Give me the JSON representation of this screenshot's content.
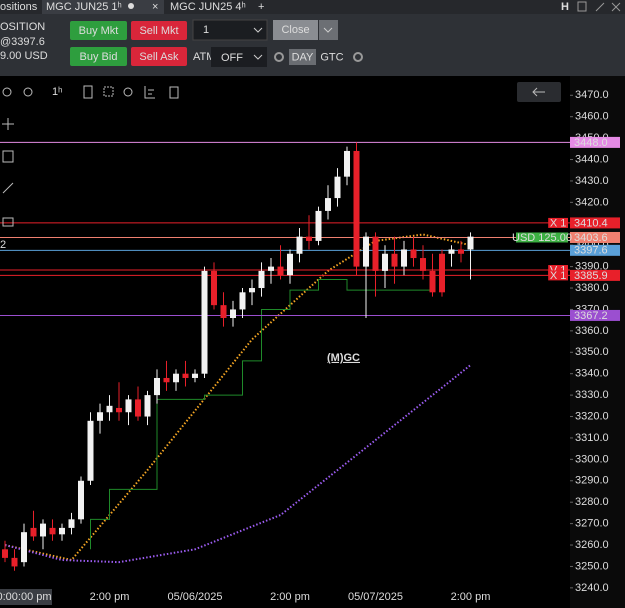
{
  "tabs": {
    "items": [
      "ositions",
      "MGC JUN25 1ʰ",
      "MGC JUN25 4ʰ"
    ],
    "header_icon": "H"
  },
  "toolbar": {
    "position_label": "OSITION",
    "price": "@3397.6",
    "pnl": "9.00 USD",
    "buttons": [
      "Buy Mkt",
      "Sell Mkt",
      "Buy Bid",
      "Sell Ask"
    ],
    "quantity": "1",
    "close": "Close",
    "atm_label": "ATM",
    "atm": "OFF",
    "tif": [
      "DAY",
      "GTC"
    ],
    "interval": "1ʰ",
    "left_marker": "2"
  },
  "chart_data": {
    "type": "candlestick",
    "watermark": "(M)GC",
    "categories": [
      null,
      null,
      "0:00:00 pm",
      null,
      null,
      null,
      null,
      null,
      null,
      null,
      null,
      "2:00 pm",
      null,
      null,
      null,
      null,
      null,
      null,
      null,
      null,
      "05/06/2025",
      null,
      null,
      null,
      null,
      null,
      null,
      null,
      null,
      null,
      "2:00 pm",
      null,
      null,
      null,
      null,
      null,
      null,
      null,
      null,
      "05/07/2025",
      null,
      null,
      null,
      null,
      null,
      null,
      null,
      null,
      null,
      "2:00 pm"
    ],
    "open": [
      3258,
      3254,
      3252,
      3268,
      3264,
      3268,
      3265,
      3268,
      3272,
      3290,
      3318,
      3322,
      3324,
      3322,
      3328,
      3320,
      3330,
      3338,
      3336,
      3340,
      3338,
      3340,
      3388,
      3372,
      3366,
      3370,
      3378,
      3380,
      3388,
      3390,
      3386,
      3396,
      3404,
      3402,
      3416,
      3422,
      3432,
      3444,
      3390,
      3404,
      3388,
      3396,
      3390,
      3398,
      3394,
      3388,
      3396,
      3396,
      3398,
      3398
    ],
    "high": [
      3262,
      3258,
      3270,
      3276,
      3272,
      3272,
      3270,
      3275,
      3292,
      3322,
      3326,
      3330,
      3336,
      3330,
      3334,
      3332,
      3342,
      3346,
      3342,
      3346,
      3342,
      3390,
      3392,
      3378,
      3374,
      3380,
      3384,
      3392,
      3394,
      3400,
      3398,
      3408,
      3414,
      3418,
      3428,
      3436,
      3446,
      3448,
      3406,
      3406,
      3400,
      3404,
      3402,
      3404,
      3400,
      3396,
      3398,
      3400,
      3402,
      3406
    ],
    "low": [
      3252,
      3248,
      3250,
      3262,
      3258,
      3262,
      3262,
      3265,
      3270,
      3288,
      3312,
      3318,
      3318,
      3316,
      3318,
      3316,
      3326,
      3332,
      3332,
      3334,
      3336,
      3338,
      3370,
      3362,
      3362,
      3366,
      3372,
      3376,
      3382,
      3384,
      3382,
      3392,
      3398,
      3400,
      3412,
      3418,
      3428,
      3386,
      3366,
      3376,
      3380,
      3382,
      3386,
      3390,
      3384,
      3376,
      3376,
      3390,
      3392,
      3384
    ],
    "close": [
      3254,
      3250,
      3266,
      3264,
      3270,
      3265,
      3268,
      3272,
      3290,
      3318,
      3322,
      3325,
      3322,
      3328,
      3320,
      3330,
      3338,
      3336,
      3340,
      3338,
      3340,
      3388,
      3372,
      3366,
      3370,
      3378,
      3380,
      3388,
      3390,
      3386,
      3396,
      3404,
      3402,
      3416,
      3422,
      3432,
      3444,
      3390,
      3404,
      3388,
      3396,
      3390,
      3398,
      3394,
      3388,
      3378,
      3378,
      3398,
      3396,
      3404
    ],
    "up_color": "#f2f2f2",
    "down_color": "#e8202a",
    "indicators": [
      {
        "style": "dotted",
        "color": "#f5a623",
        "x": [
          0,
          7,
          15,
          26,
          34,
          39,
          44,
          49
        ],
        "values": [
          3260,
          3253,
          3295,
          3356,
          3388,
          3402,
          3405,
          3400
        ]
      },
      {
        "style": "dotted",
        "color": "#9b5cf0",
        "x": [
          0,
          6,
          12,
          20,
          29,
          37,
          49
        ],
        "values": [
          3260,
          3253,
          3252,
          3258,
          3274,
          3302,
          3344
        ]
      },
      {
        "style": "step",
        "color": "#1f8a2a",
        "x": [
          9,
          11,
          16,
          21,
          25,
          27,
          30,
          33,
          36,
          39,
          44,
          45
        ],
        "values": [
          3258,
          3272,
          3286,
          3328,
          3330,
          3346,
          3370,
          3379,
          3384,
          3379,
          3379,
          3379
        ]
      }
    ],
    "price_lines": [
      {
        "value": 3448,
        "label": "3448.0",
        "color": "#e58be5"
      },
      {
        "value": 3410.4,
        "label": "3410.4",
        "color": "#e8202a",
        "tag": "X 1"
      },
      {
        "value": 3403.6,
        "label": "3403.6",
        "color": "#f08070",
        "tag": "USD 125.00",
        "tag_color": "#3cb043"
      },
      {
        "value": 3397.6,
        "label": "3397.6",
        "color": "#5aa0d8"
      },
      {
        "value": 3388.4,
        "color": "#e8202a",
        "tag": "V 1"
      },
      {
        "value": 3385.9,
        "label": "3385.9",
        "color": "#e8202a",
        "tag": "X 1"
      },
      {
        "value": 3367.2,
        "label": "3367.2",
        "color": "#9b4fd0"
      }
    ],
    "ylim": [
      3239,
      3479
    ],
    "yticks": [
      {
        "value": 3240,
        "label": "3240.0"
      },
      {
        "value": 3250,
        "label": "3250.0"
      },
      {
        "value": 3260,
        "label": "3260.0"
      },
      {
        "value": 3270,
        "label": "3270.0"
      },
      {
        "value": 3280,
        "label": "3280.0"
      },
      {
        "value": 3290,
        "label": "3290.0"
      },
      {
        "value": 3300,
        "label": "3300.0"
      },
      {
        "value": 3310,
        "label": "3310.0"
      },
      {
        "value": 3320,
        "label": "3320.0"
      },
      {
        "value": 3330,
        "label": "3330.0"
      },
      {
        "value": 3340,
        "label": "3340.0"
      },
      {
        "value": 3350,
        "label": "3350.0"
      },
      {
        "value": 3360,
        "label": "3360.0"
      },
      {
        "value": 3370,
        "label": "3370.0"
      },
      {
        "value": 3380,
        "label": "3380.0"
      },
      {
        "value": 3390,
        "label": "3390.0"
      },
      {
        "value": 3400,
        "label": "3400.0"
      },
      {
        "value": 3410,
        "label": "3410.0"
      },
      {
        "value": 3420,
        "label": "3420.0"
      },
      {
        "value": 3430,
        "label": "3430.0"
      },
      {
        "value": 3440,
        "label": "3440.0"
      },
      {
        "value": 3450,
        "label": "3450.0"
      },
      {
        "value": 3460,
        "label": "3460.0"
      },
      {
        "value": 3470,
        "label": "3470.0"
      }
    ]
  }
}
